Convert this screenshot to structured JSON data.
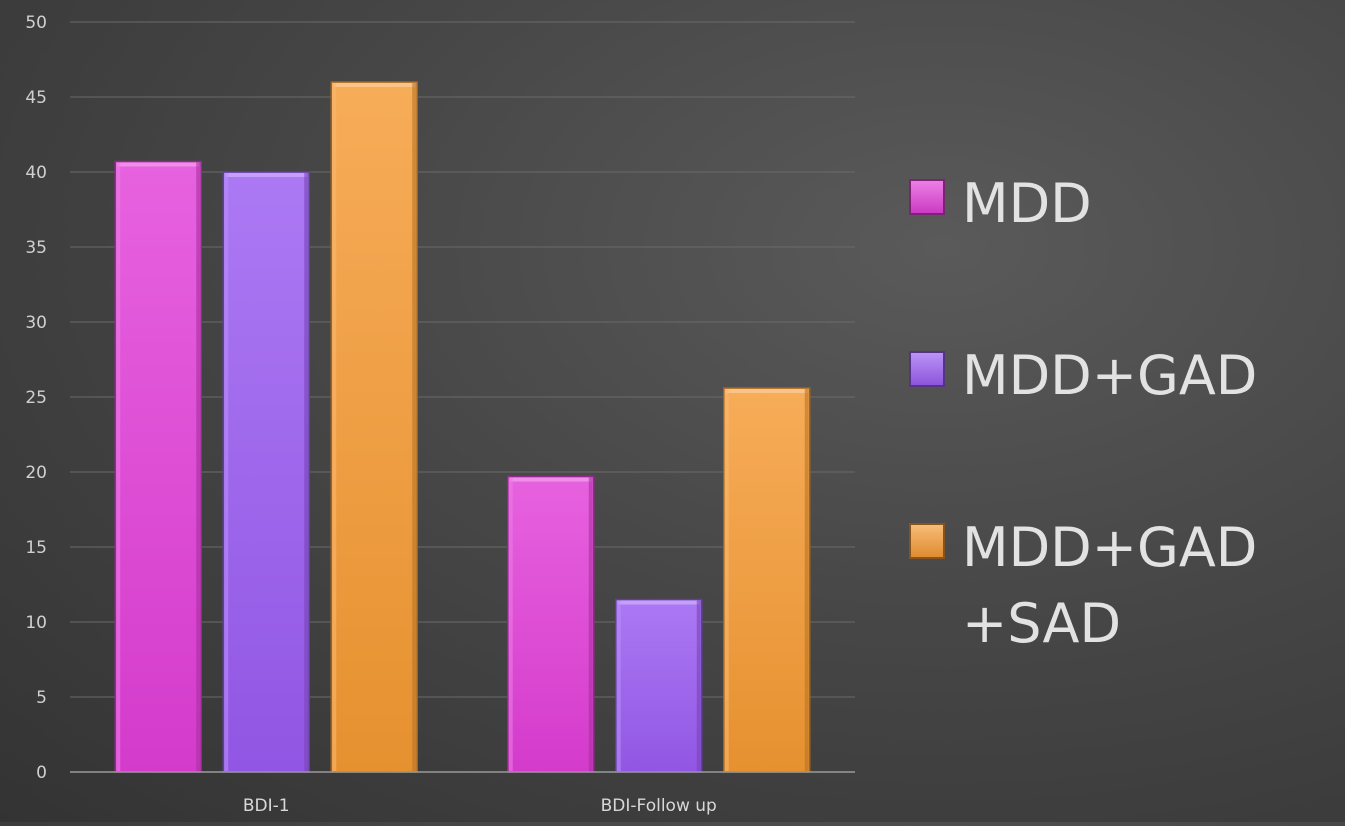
{
  "chart_data": {
    "type": "bar",
    "categories": [
      "BDI-1",
      "BDI-Follow up"
    ],
    "series": [
      {
        "name": "MDD",
        "values": [
          40.7,
          19.7
        ],
        "color": "#e23fd8"
      },
      {
        "name": "MDD+GAD",
        "values": [
          40.0,
          11.5
        ],
        "color": "#9a5cf2"
      },
      {
        "name": "MDD+GAD+SAD",
        "values": [
          46.0,
          25.6
        ],
        "color": "#f59a33"
      }
    ],
    "ylim": [
      0,
      50
    ],
    "yticks": [
      0,
      5,
      10,
      15,
      20,
      25,
      30,
      35,
      40,
      45,
      50
    ],
    "grid": true,
    "legend_position": "right",
    "legend_labels": [
      [
        "MDD"
      ],
      [
        "MDD+GAD"
      ],
      [
        "MDD+GAD",
        "+SAD"
      ]
    ]
  }
}
